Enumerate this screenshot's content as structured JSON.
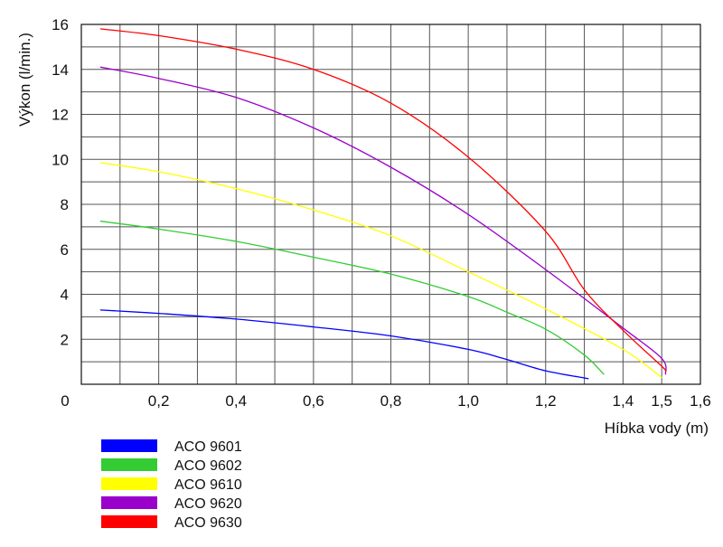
{
  "chart_data": {
    "type": "line",
    "title": "",
    "xlabel": "Híbka vody (m)",
    "ylabel": "Výkon (l/min.)",
    "xlim": [
      0,
      1.6
    ],
    "ylim": [
      0,
      16
    ],
    "x_ticks": [
      "0",
      "0,2",
      "0,4",
      "0,6",
      "0,8",
      "1,0",
      "1,2",
      "1,4",
      "1,5",
      "1,6"
    ],
    "y_ticks": [
      "2",
      "4",
      "6",
      "8",
      "10",
      "12",
      "14",
      "16"
    ],
    "grid": true,
    "legend_position": "bottom-left",
    "series": [
      {
        "name": "ACO 9601",
        "color": "#0000ff",
        "points": [
          [
            0.05,
            3.3
          ],
          [
            0.2,
            3.15
          ],
          [
            0.4,
            2.9
          ],
          [
            0.6,
            2.55
          ],
          [
            0.8,
            2.15
          ],
          [
            1.0,
            1.55
          ],
          [
            1.1,
            1.1
          ],
          [
            1.2,
            0.6
          ],
          [
            1.31,
            0.25
          ]
        ]
      },
      {
        "name": "ACO 9602",
        "color": "#33cc33",
        "points": [
          [
            0.05,
            7.25
          ],
          [
            0.2,
            6.9
          ],
          [
            0.4,
            6.35
          ],
          [
            0.6,
            5.65
          ],
          [
            0.8,
            4.9
          ],
          [
            1.0,
            3.9
          ],
          [
            1.1,
            3.2
          ],
          [
            1.2,
            2.45
          ],
          [
            1.3,
            1.3
          ],
          [
            1.35,
            0.45
          ]
        ]
      },
      {
        "name": "ACO 9610",
        "color": "#ffff00",
        "points": [
          [
            0.05,
            9.85
          ],
          [
            0.2,
            9.45
          ],
          [
            0.4,
            8.7
          ],
          [
            0.6,
            7.75
          ],
          [
            0.8,
            6.6
          ],
          [
            1.0,
            5.0
          ],
          [
            1.2,
            3.35
          ],
          [
            1.4,
            1.55
          ],
          [
            1.5,
            0.3
          ]
        ]
      },
      {
        "name": "ACO 9620",
        "color": "#9900cc",
        "points": [
          [
            0.05,
            14.1
          ],
          [
            0.2,
            13.6
          ],
          [
            0.4,
            12.75
          ],
          [
            0.6,
            11.4
          ],
          [
            0.8,
            9.65
          ],
          [
            1.0,
            7.55
          ],
          [
            1.2,
            5.1
          ],
          [
            1.4,
            2.5
          ],
          [
            1.5,
            1.15
          ],
          [
            1.51,
            0.45
          ]
        ]
      },
      {
        "name": "ACO 9630",
        "color": "#ff0000",
        "points": [
          [
            0.05,
            15.8
          ],
          [
            0.2,
            15.5
          ],
          [
            0.4,
            14.9
          ],
          [
            0.6,
            14.0
          ],
          [
            0.8,
            12.5
          ],
          [
            1.0,
            10.1
          ],
          [
            1.2,
            6.8
          ],
          [
            1.3,
            4.2
          ],
          [
            1.4,
            2.4
          ],
          [
            1.5,
            0.8
          ],
          [
            1.51,
            0.6
          ]
        ]
      }
    ]
  }
}
